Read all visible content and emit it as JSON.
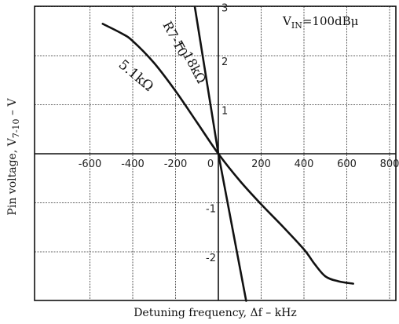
{
  "chart_data": {
    "type": "line",
    "title": "",
    "annotation": "V_IN=100dBμ",
    "annotation_parts": {
      "main": "V",
      "sub": "IN",
      "rest": "=100dBμ"
    },
    "xlabel": "Detuning frequency, Δf  –  kHz",
    "ylabel": "Pin voltage, V7-10  –  V",
    "ylabel_parts": {
      "pre": "Pin voltage, V",
      "sub": "7-10",
      "post": "  –  V"
    },
    "xlim": [
      -750,
      800
    ],
    "ylim": [
      -3,
      3
    ],
    "x_ticks": [
      -600,
      -400,
      -200,
      0,
      200,
      400,
      600,
      800
    ],
    "x_tick_labels": [
      "-600",
      "-400",
      "-200",
      "0",
      "200",
      "400",
      "600",
      "800"
    ],
    "y_ticks": [
      3,
      2,
      1,
      -1,
      -2
    ],
    "y_tick_labels": [
      "3",
      "2",
      "1",
      "-1",
      "-2"
    ],
    "grid": true,
    "series": [
      {
        "name": "5.1kΩ",
        "x": [
          -540,
          -450,
          -400,
          -300,
          -200,
          -100,
          0,
          100,
          200,
          300,
          400,
          450,
          500,
          560,
          630
        ],
        "y": [
          2.65,
          2.45,
          2.3,
          1.85,
          1.28,
          0.64,
          0.0,
          -0.55,
          -1.03,
          -1.48,
          -1.95,
          -2.25,
          -2.5,
          -2.6,
          -2.65
        ]
      },
      {
        "name": "R7-10 = 18kΩ",
        "x": [
          -110,
          0,
          130
        ],
        "y": [
          3.0,
          0.0,
          -3.0
        ]
      }
    ],
    "curve_labels": [
      "5.1kΩ",
      "R7-10 = 18kΩ"
    ],
    "curve_label_parts": {
      "s1": "5.1kΩ",
      "s2a": "R7-10",
      "s2b": "= 18kΩ"
    }
  }
}
